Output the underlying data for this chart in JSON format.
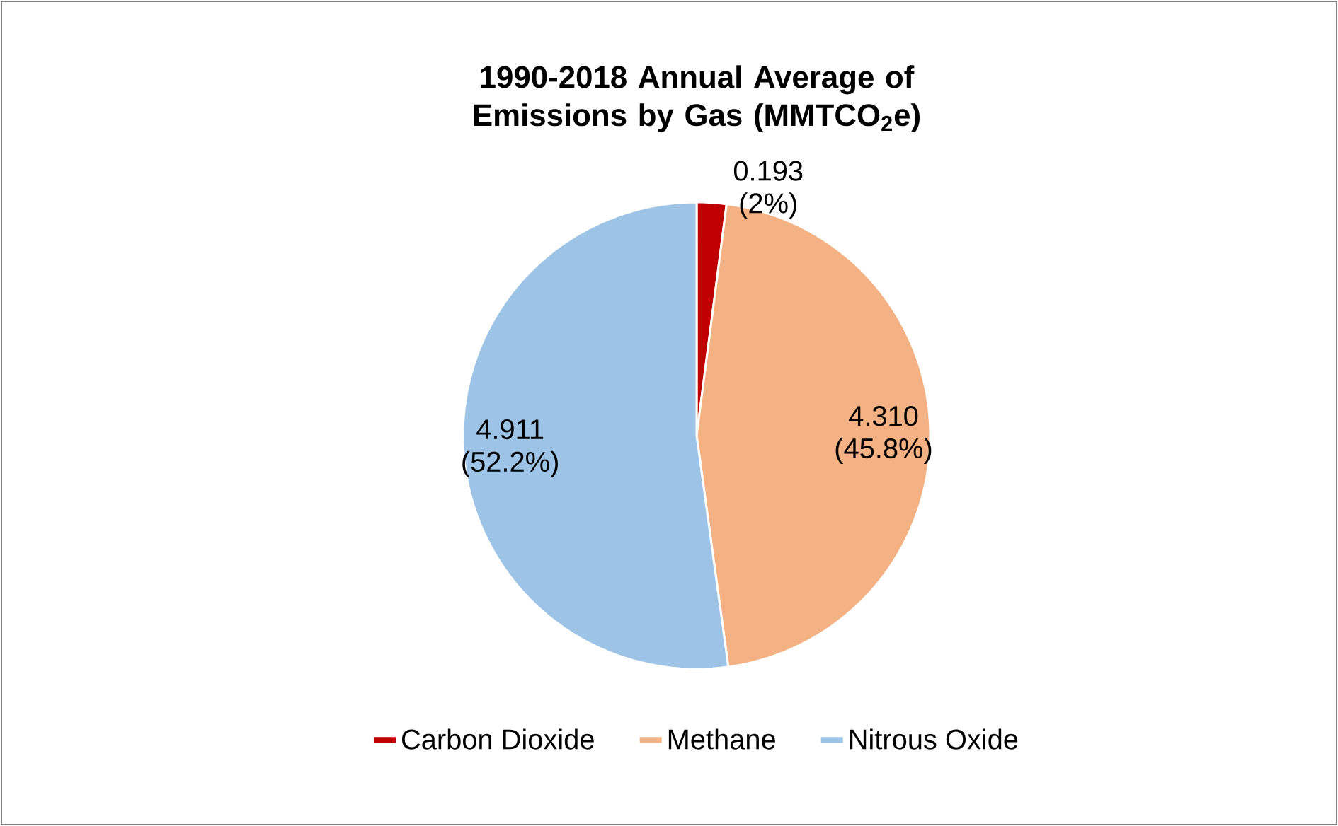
{
  "chart_data": {
    "type": "pie",
    "title": "1990-2018 Annual Average of Emissions by Gas (MMTCO$_{2}$e)",
    "categories": [
      "Carbon Dioxide",
      "Methane",
      "Nitrous Oxide"
    ],
    "values": [
      0.193,
      4.31,
      4.911
    ],
    "colors": [
      "#c00000",
      "#f4b183",
      "#9dc3e6"
    ],
    "value_labels": [
      "0.193 (2%)",
      "4.310 (45.8%)",
      "4.911 (52.2%)"
    ],
    "legend": "bottom"
  }
}
